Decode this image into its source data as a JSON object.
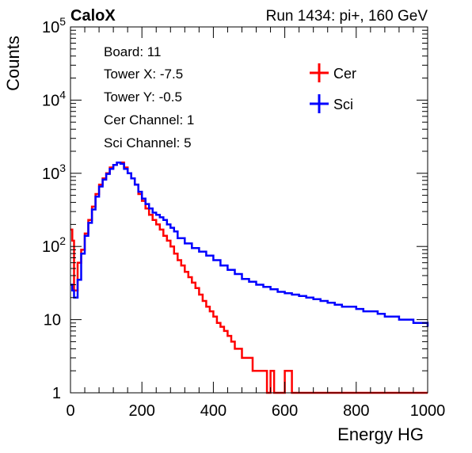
{
  "header": {
    "left_label": "CaloX",
    "right_label": "Run 1434: pi+, 160 GeV"
  },
  "info_box": {
    "lines": [
      "Board: 11",
      "Tower X: -7.5",
      "Tower Y: -0.5",
      "Cer Channel: 1",
      "Sci Channel: 5"
    ]
  },
  "colors": {
    "cer": "#ff0000",
    "sci": "#0000ff",
    "axis": "#000000"
  },
  "chart_data": {
    "type": "line",
    "xlabel": "Energy HG",
    "ylabel": "Counts",
    "xlim": [
      0,
      1000
    ],
    "ylim": [
      1,
      100000
    ],
    "yscale": "log",
    "grid": false,
    "legend": "top-right",
    "x_ticks": [
      0,
      200,
      400,
      600,
      800,
      1000
    ],
    "y_ticks": [
      1,
      10,
      100,
      1000,
      10000,
      100000
    ],
    "y_tick_labels": [
      "1",
      "10",
      "10^2",
      "10^3",
      "10^4",
      "10^5"
    ],
    "series": [
      {
        "name": "Cer",
        "x": [
          0,
          5,
          10,
          20,
          30,
          40,
          50,
          60,
          70,
          80,
          90,
          100,
          110,
          120,
          130,
          140,
          150,
          160,
          170,
          180,
          190,
          200,
          210,
          220,
          230,
          240,
          250,
          260,
          270,
          280,
          290,
          300,
          310,
          320,
          330,
          340,
          350,
          360,
          370,
          380,
          390,
          400,
          410,
          420,
          430,
          440,
          450,
          460,
          470,
          480,
          490,
          500,
          510,
          520,
          530,
          540,
          550,
          560,
          570,
          580,
          590,
          600,
          620,
          640,
          660,
          680,
          700,
          720,
          740,
          760,
          780,
          800,
          820,
          840,
          860,
          880,
          900,
          920,
          940,
          960,
          980,
          1000
        ],
        "y": [
          170,
          120,
          25,
          60,
          90,
          150,
          230,
          350,
          520,
          700,
          850,
          1000,
          1200,
          1300,
          1400,
          1400,
          1200,
          1000,
          850,
          700,
          520,
          420,
          330,
          270,
          230,
          200,
          170,
          140,
          120,
          100,
          80,
          65,
          55,
          45,
          38,
          32,
          27,
          22,
          18,
          15,
          13,
          11,
          9,
          8,
          7,
          6,
          5,
          4,
          4,
          3,
          3,
          3,
          2,
          2,
          2,
          2,
          1,
          2,
          1,
          1,
          1,
          2,
          1,
          1,
          1,
          1,
          1,
          1,
          1,
          1,
          1,
          1,
          1,
          1,
          1,
          1,
          1,
          1,
          1,
          1,
          1,
          1
        ]
      },
      {
        "name": "Sci",
        "x": [
          0,
          5,
          10,
          20,
          30,
          40,
          50,
          60,
          70,
          80,
          90,
          100,
          110,
          120,
          130,
          140,
          150,
          160,
          170,
          180,
          190,
          200,
          210,
          220,
          230,
          240,
          250,
          260,
          270,
          280,
          290,
          300,
          320,
          340,
          360,
          380,
          400,
          420,
          440,
          460,
          480,
          500,
          520,
          540,
          560,
          580,
          600,
          620,
          640,
          660,
          680,
          700,
          720,
          740,
          760,
          780,
          800,
          820,
          840,
          860,
          880,
          900,
          920,
          940,
          960,
          980,
          1000
        ],
        "y": [
          30,
          25,
          20,
          35,
          80,
          140,
          210,
          320,
          480,
          660,
          820,
          980,
          1150,
          1300,
          1400,
          1350,
          1150,
          1000,
          850,
          700,
          560,
          450,
          380,
          330,
          290,
          270,
          250,
          230,
          200,
          180,
          160,
          130,
          110,
          95,
          85,
          75,
          65,
          55,
          48,
          42,
          36,
          33,
          30,
          28,
          26,
          24,
          23,
          22,
          21,
          20,
          19,
          18,
          17,
          16,
          15,
          15,
          14,
          13,
          13,
          12,
          11,
          11,
          10,
          10,
          9,
          9,
          8
        ]
      }
    ]
  }
}
